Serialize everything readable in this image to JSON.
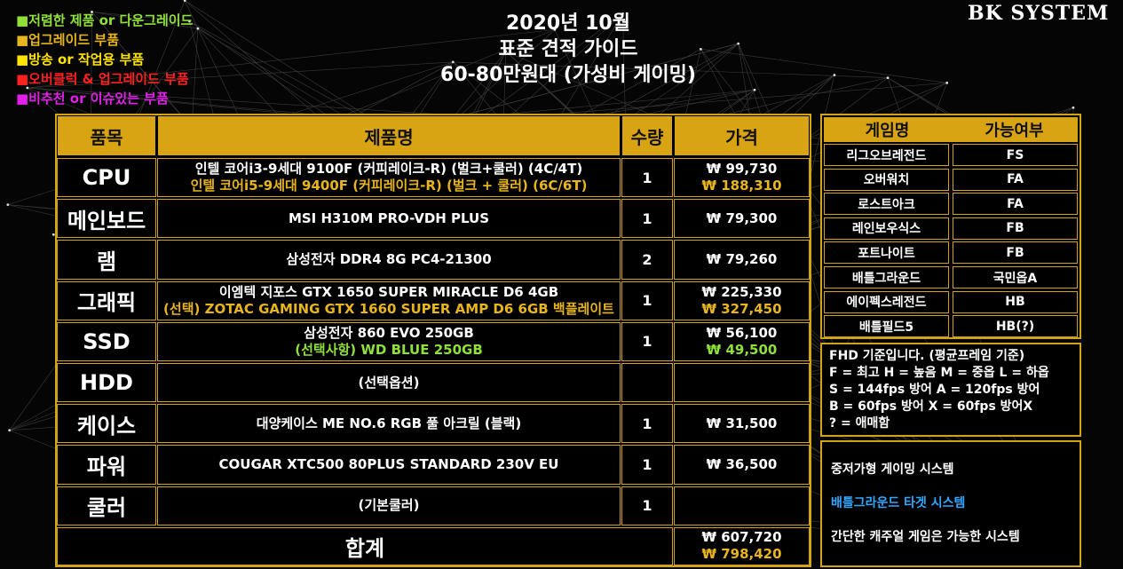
{
  "legend": [
    {
      "text": "■저렴한 제품 or 다운그레이드",
      "color": "#8fe13a"
    },
    {
      "text": "■업그레이드 부품",
      "color": "#e8b51c"
    },
    {
      "text": "■방송 or 작업용 부품",
      "color": "#ffe400"
    },
    {
      "text": "■오버클럭 & 업그레이드 부품",
      "color": "#ff2020"
    },
    {
      "text": "■비추천 or 이슈있는 부품",
      "color": "#e020e8"
    }
  ],
  "title": {
    "line1": "2020년 10월",
    "line2": "표준 견적 가이드",
    "line3": "60-80만원대 (가성비 게이밍)"
  },
  "logo": "BK SYSTEM",
  "table": {
    "headers": {
      "category": "품목",
      "product": "제품명",
      "qty": "수량",
      "price": "가격"
    },
    "rows": [
      {
        "category": "CPU",
        "product": "인텔 코어i3-9세대 9100F (커피레이크-R) (벌크+쿨러) (4C/4T)",
        "product_alt": "인텔 코어i5-9세대 9400F (커피레이크-R) (벌크 + 쿨러) (6C/6T)",
        "alt_color": "gold",
        "qty": "1",
        "price": "₩ 99,730",
        "price_alt": "₩ 188,310"
      },
      {
        "category": "메인보드",
        "product": "MSI H310M PRO-VDH PLUS",
        "product_alt": "",
        "alt_color": "",
        "qty": "1",
        "price": "₩ 79,300",
        "price_alt": ""
      },
      {
        "category": "램",
        "product": "삼성전자 DDR4 8G PC4-21300",
        "product_alt": "",
        "alt_color": "",
        "qty": "2",
        "price": "₩ 79,260",
        "price_alt": ""
      },
      {
        "category": "그래픽",
        "product": "이엠텍 지포스 GTX 1650 SUPER MIRACLE D6 4GB",
        "product_alt": "(선택) ZOTAC GAMING GTX 1660 SUPER AMP D6 6GB 백플레이트",
        "alt_color": "gold",
        "qty": "1",
        "price": "₩ 225,330",
        "price_alt": "₩ 327,450"
      },
      {
        "category": "SSD",
        "product": "삼성전자 860 EVO 250GB",
        "product_alt": "(선택사항) WD BLUE 250GB",
        "alt_color": "green",
        "qty": "1",
        "price": "₩ 56,100",
        "price_alt": "₩ 49,500"
      },
      {
        "category": "HDD",
        "product": "(선택옵션)",
        "product_alt": "",
        "alt_color": "",
        "qty": "",
        "price": "",
        "price_alt": ""
      },
      {
        "category": "케이스",
        "product": "대양케이스 ME NO.6 RGB 풀 아크릴 (블랙)",
        "product_alt": "",
        "alt_color": "",
        "qty": "1",
        "price": "₩ 31,500",
        "price_alt": ""
      },
      {
        "category": "파워",
        "product": "COUGAR XTC500 80PLUS STANDARD 230V EU",
        "product_alt": "",
        "alt_color": "",
        "qty": "1",
        "price": "₩ 36,500",
        "price_alt": ""
      },
      {
        "category": "쿨러",
        "product": "(기본쿨러)",
        "product_alt": "",
        "alt_color": "",
        "qty": "1",
        "price": "",
        "price_alt": ""
      }
    ],
    "total": {
      "label": "합계",
      "price": "₩ 607,720",
      "price_alt": "₩ 798,420"
    }
  },
  "games": {
    "headers": {
      "name": "게임명",
      "status": "가능여부"
    },
    "rows": [
      {
        "name": "리그오브레전드",
        "status": "FS"
      },
      {
        "name": "오버워치",
        "status": "FA"
      },
      {
        "name": "로스트아크",
        "status": "FA"
      },
      {
        "name": "레인보우식스",
        "status": "FB"
      },
      {
        "name": "포트나이트",
        "status": "FB"
      },
      {
        "name": "배틀그라운드",
        "status": "국민옵A"
      },
      {
        "name": "에이펙스레전드",
        "status": "HB"
      },
      {
        "name": "배틀필드5",
        "status": "HB(?)"
      }
    ]
  },
  "notes": [
    "FHD 기준입니다. (평균프레임 기준)",
    "F = 최고 H = 높음 M = 중옵 L = 하옵",
    "S = 144fps 방어  A = 120fps 방어",
    "B = 60fps 방어  X = 60fps 방어X",
    "?  = 애매함"
  ],
  "targets": [
    {
      "text": "중저가형 게이밍 시스템",
      "color": "#ffffff"
    },
    {
      "text": "배틀그라운드 타겟 시스템",
      "color": "#2fa8ff"
    },
    {
      "text": "간단한 캐주얼 게임은 가능한 시스템",
      "color": "#ffffff"
    }
  ],
  "colors": {
    "gold": "#d8a414",
    "background": "#050505"
  }
}
